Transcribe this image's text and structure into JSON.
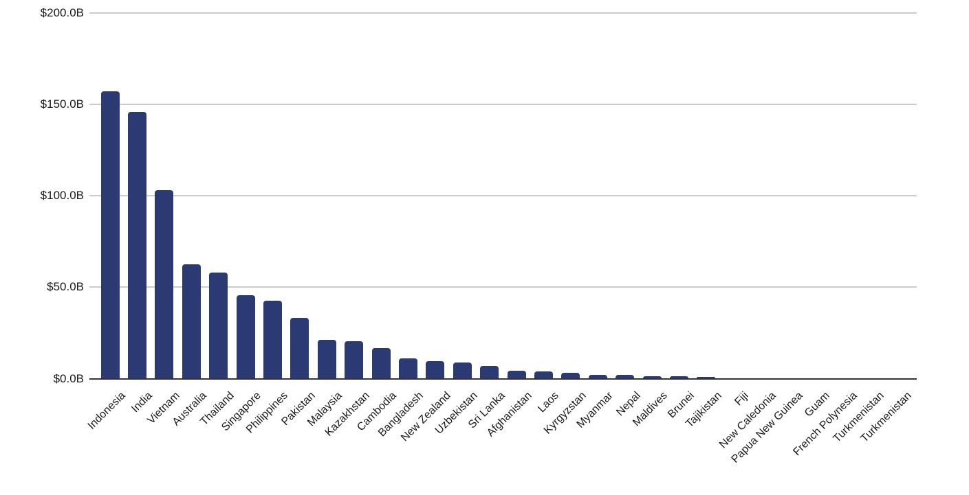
{
  "chart_data": {
    "type": "bar",
    "title": "",
    "legend": "none",
    "grid": true,
    "orientation": "vertical",
    "ylim": [
      0,
      200
    ],
    "y_ticks": [
      {
        "value": 0,
        "label": "$0.0B"
      },
      {
        "value": 50,
        "label": "$50.0B"
      },
      {
        "value": 100,
        "label": "$100.0B"
      },
      {
        "value": 150,
        "label": "$150.0B"
      },
      {
        "value": 200,
        "label": "$200.0B"
      }
    ],
    "categories": [
      "Indonesia",
      "India",
      "Vietnam",
      "Australia",
      "Thailand",
      "Singapore",
      "Philippines",
      "Pakistan",
      "Malaysia",
      "Kazakhstan",
      "Cambodia",
      "Bangladesh",
      "New Zealand",
      "Uzbekistan",
      "Sri Lanka",
      "Afghanistan",
      "Laos",
      "Kyrgyzstan",
      "Myanmar",
      "Nepal",
      "Maldives",
      "Brunei",
      "Tajikistan",
      "Fiji",
      "New Caledonia",
      "Papua New Guinea",
      "Guam",
      "French Polynesia",
      "Turkmenistan",
      "Turkmenistan"
    ],
    "values": [
      157.2,
      146.0,
      103.0,
      62.5,
      58.0,
      45.6,
      42.8,
      33.2,
      21.4,
      20.6,
      16.6,
      11.0,
      9.6,
      8.7,
      7.1,
      4.4,
      4.1,
      3.2,
      2.1,
      2.0,
      1.3,
      1.2,
      1.1,
      0.2,
      0.15,
      0.1,
      0.1,
      0.05,
      0.03,
      0.02
    ],
    "value_unit_format": "$X.XB",
    "colors": {
      "bar": "#2b3a73",
      "gridline": "#cccccc",
      "baseline": "#333333",
      "axis_text": "#1a1a1a",
      "background": "#ffffff"
    }
  }
}
